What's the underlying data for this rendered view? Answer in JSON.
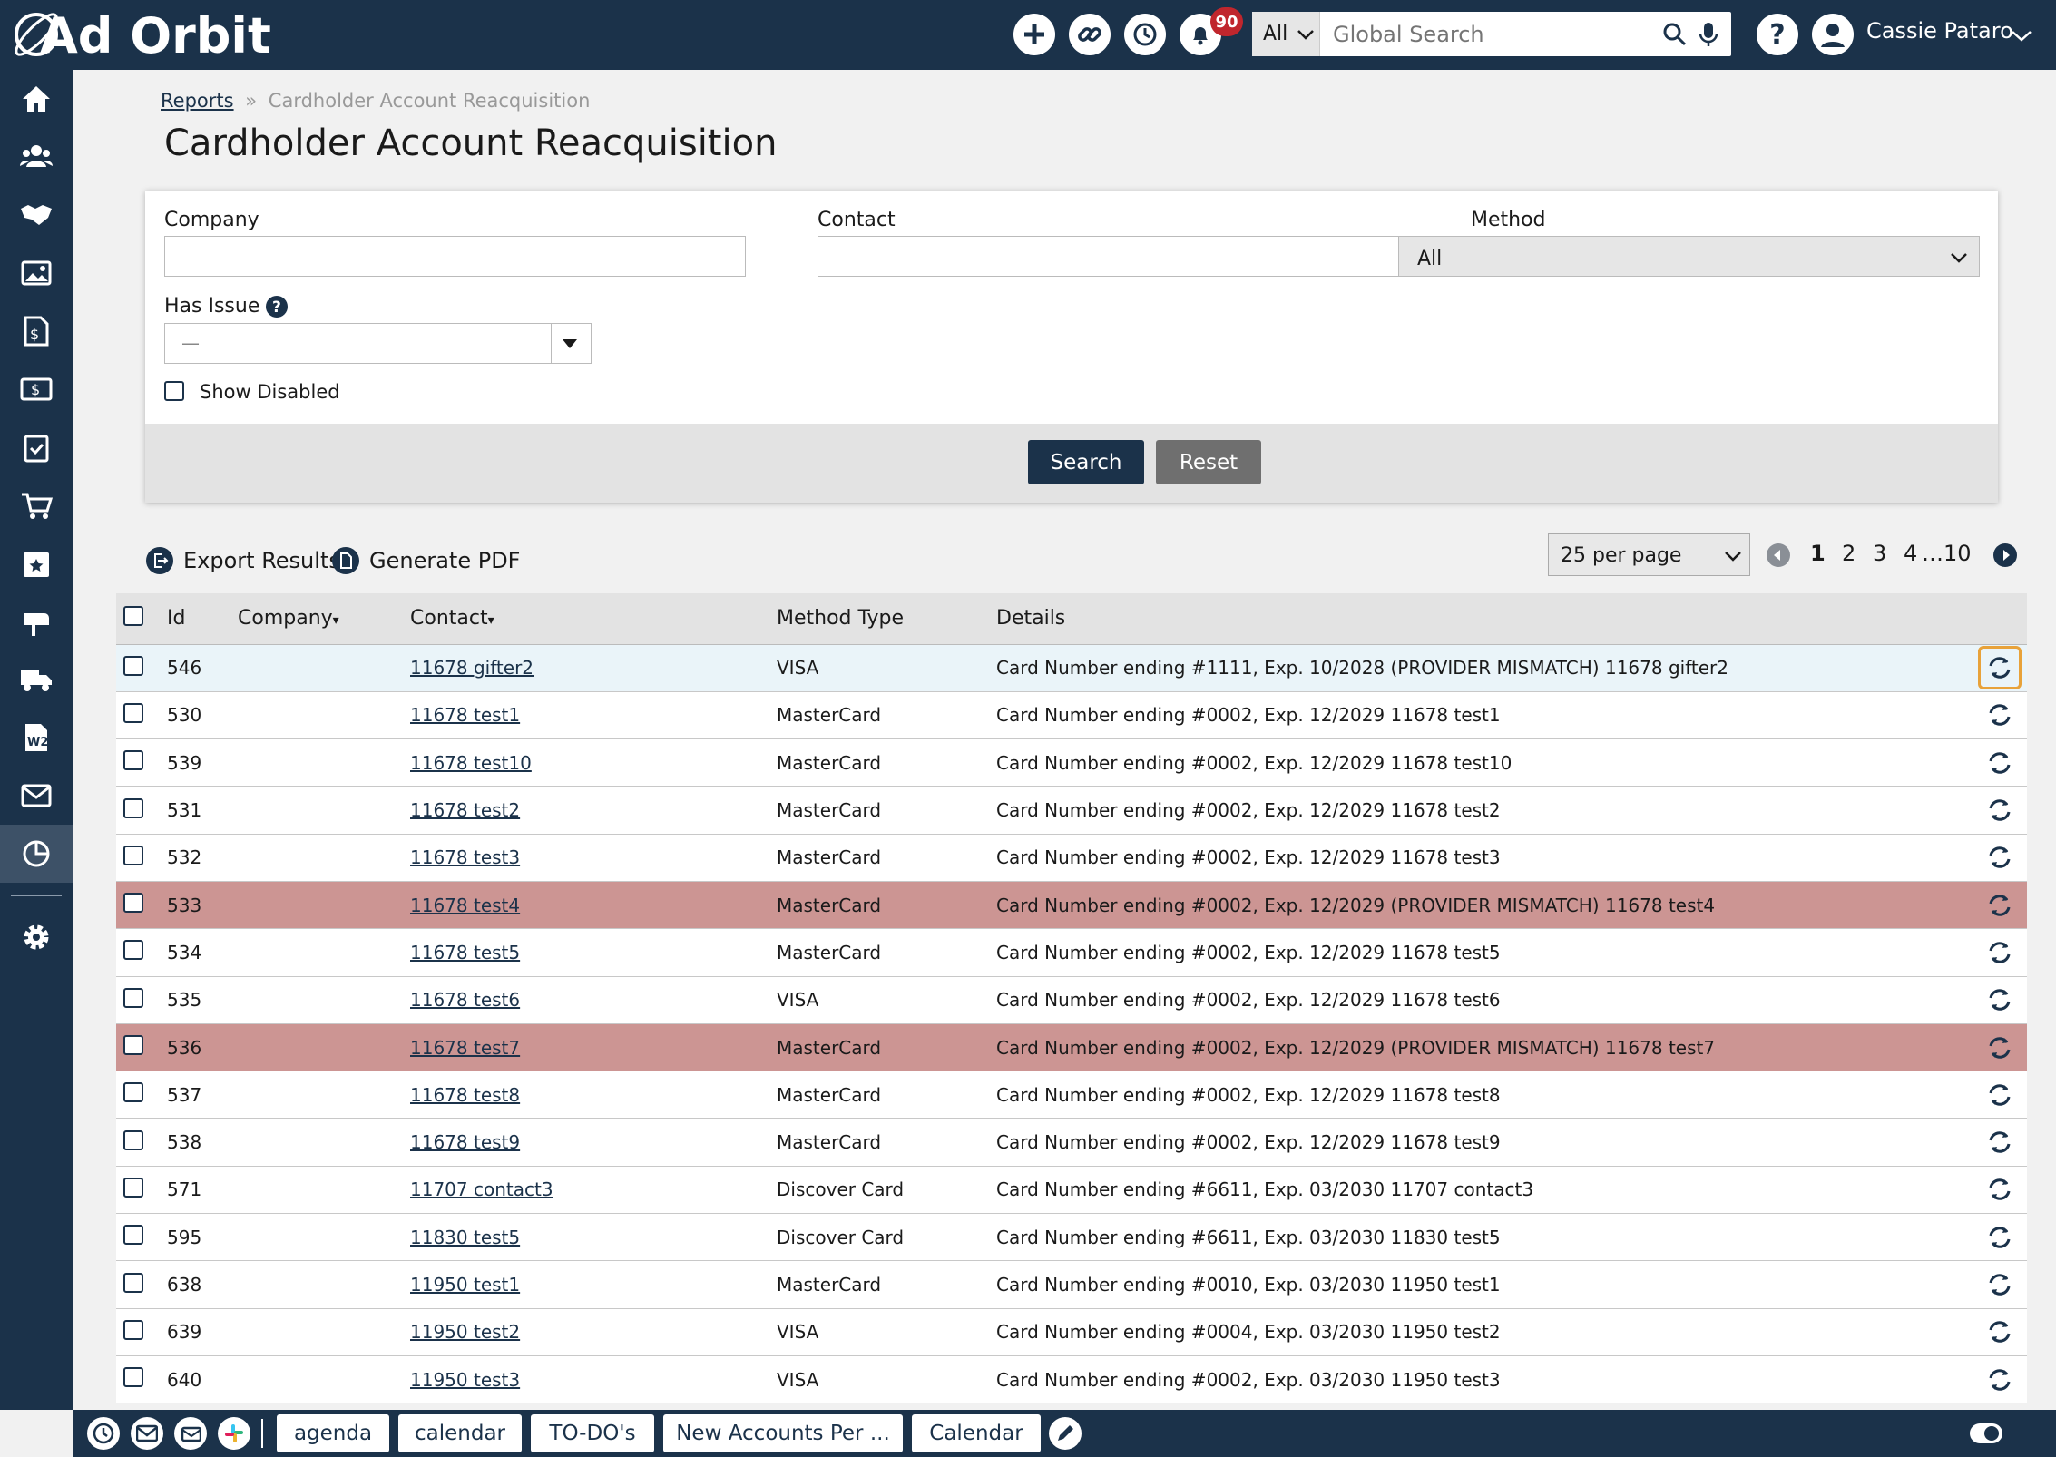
{
  "app": {
    "logo_text": "Ad Orbit"
  },
  "header": {
    "notification_count": "90",
    "search_scope": "All",
    "search_placeholder": "Global Search",
    "user_name": "Cassie Pataro"
  },
  "breadcrumb": {
    "root": "Reports",
    "separator": "»",
    "current": "Cardholder Account Reacquisition"
  },
  "page_title": "Cardholder Account Reacquisition",
  "filters": {
    "company_label": "Company",
    "company_value": "",
    "contact_label": "Contact",
    "contact_value": "",
    "method_label": "Method",
    "method_value": "All",
    "has_issue_label": "Has Issue",
    "has_issue_value": "—",
    "show_disabled_label": "Show Disabled",
    "search_button": "Search",
    "reset_button": "Reset"
  },
  "toolbar": {
    "export_label": "Export Results",
    "pdf_label": "Generate PDF",
    "per_page": "25 per page",
    "pages": [
      "1",
      "2",
      "3",
      "4"
    ],
    "ellipsis": "…",
    "last_page": "10"
  },
  "table": {
    "headers": {
      "id": "Id",
      "company": "Company",
      "contact": "Contact",
      "method": "Method Type",
      "details": "Details"
    },
    "rows": [
      {
        "id": "546",
        "company": "",
        "contact": "11678 gifter2",
        "method": "VISA",
        "details": "Card Number ending #1111, Exp. 10/2028 (PROVIDER MISMATCH) 11678 gifter2",
        "state": "highlight"
      },
      {
        "id": "530",
        "company": "",
        "contact": "11678 test1",
        "method": "MasterCard",
        "details": "Card Number ending #0002, Exp. 12/2029 11678 test1",
        "state": ""
      },
      {
        "id": "539",
        "company": "",
        "contact": "11678 test10",
        "method": "MasterCard",
        "details": "Card Number ending #0002, Exp. 12/2029 11678 test10",
        "state": ""
      },
      {
        "id": "531",
        "company": "",
        "contact": "11678 test2",
        "method": "MasterCard",
        "details": "Card Number ending #0002, Exp. 12/2029 11678 test2",
        "state": ""
      },
      {
        "id": "532",
        "company": "",
        "contact": "11678 test3",
        "method": "MasterCard",
        "details": "Card Number ending #0002, Exp. 12/2029 11678 test3",
        "state": ""
      },
      {
        "id": "533",
        "company": "",
        "contact": "11678 test4",
        "method": "MasterCard",
        "details": "Card Number ending #0002, Exp. 12/2029 (PROVIDER MISMATCH) 11678 test4",
        "state": "issue"
      },
      {
        "id": "534",
        "company": "",
        "contact": "11678 test5",
        "method": "MasterCard",
        "details": "Card Number ending #0002, Exp. 12/2029 11678 test5",
        "state": ""
      },
      {
        "id": "535",
        "company": "",
        "contact": "11678 test6",
        "method": "VISA",
        "details": "Card Number ending #0002, Exp. 12/2029 11678 test6",
        "state": ""
      },
      {
        "id": "536",
        "company": "",
        "contact": "11678 test7",
        "method": "MasterCard",
        "details": "Card Number ending #0002, Exp. 12/2029 (PROVIDER MISMATCH) 11678 test7",
        "state": "issue"
      },
      {
        "id": "537",
        "company": "",
        "contact": "11678 test8",
        "method": "MasterCard",
        "details": "Card Number ending #0002, Exp. 12/2029 11678 test8",
        "state": ""
      },
      {
        "id": "538",
        "company": "",
        "contact": "11678 test9",
        "method": "MasterCard",
        "details": "Card Number ending #0002, Exp. 12/2029 11678 test9",
        "state": ""
      },
      {
        "id": "571",
        "company": "",
        "contact": "11707 contact3",
        "method": "Discover Card",
        "details": "Card Number ending #6611, Exp. 03/2030 11707 contact3",
        "state": ""
      },
      {
        "id": "595",
        "company": "",
        "contact": "11830 test5",
        "method": "Discover Card",
        "details": "Card Number ending #6611, Exp. 03/2030 11830 test5",
        "state": ""
      },
      {
        "id": "638",
        "company": "",
        "contact": "11950 test1",
        "method": "MasterCard",
        "details": "Card Number ending #0010, Exp. 03/2030 11950 test1",
        "state": ""
      },
      {
        "id": "639",
        "company": "",
        "contact": "11950 test2",
        "method": "VISA",
        "details": "Card Number ending #0004, Exp. 03/2030 11950 test2",
        "state": ""
      },
      {
        "id": "640",
        "company": "",
        "contact": "11950 test3",
        "method": "VISA",
        "details": "Card Number ending #0002, Exp. 03/2030 11950 test3",
        "state": ""
      }
    ]
  },
  "bottombar": {
    "tabs": [
      "agenda",
      "calendar",
      "TO-DO's",
      "New Accounts Per ...",
      "Calendar"
    ]
  },
  "colors": {
    "navy": "#1b324a",
    "issue_row": "#cc9593",
    "highlight_row": "#eaf4f9",
    "focus_outline": "#e8a23a",
    "badge": "#c0262d"
  }
}
